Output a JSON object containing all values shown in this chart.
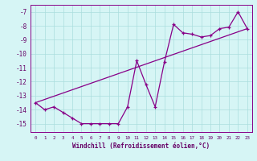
{
  "xlabel": "Windchill (Refroidissement éolien,°C)",
  "bg_color": "#d6f5f5",
  "line_color": "#880088",
  "grid_color": "#aadddd",
  "text_color": "#660066",
  "xlim": [
    -0.5,
    23.5
  ],
  "ylim": [
    -15.6,
    -6.5
  ],
  "yticks": [
    -15,
    -14,
    -13,
    -12,
    -11,
    -10,
    -9,
    -8,
    -7
  ],
  "xticks": [
    0,
    1,
    2,
    3,
    4,
    5,
    6,
    7,
    8,
    9,
    10,
    11,
    12,
    13,
    14,
    15,
    16,
    17,
    18,
    19,
    20,
    21,
    22,
    23
  ],
  "series1_x": [
    0,
    1,
    2,
    3,
    4,
    5,
    6,
    7,
    8,
    9,
    10,
    11,
    12,
    13,
    14,
    15,
    16,
    17,
    18,
    19,
    20,
    21,
    22,
    23
  ],
  "series1_y": [
    -13.5,
    -14.0,
    -13.8,
    -14.2,
    -14.6,
    -15.0,
    -15.0,
    -15.0,
    -15.0,
    -15.0,
    -13.8,
    -10.5,
    -12.2,
    -13.8,
    -10.6,
    -7.9,
    -8.5,
    -8.6,
    -8.8,
    -8.7,
    -8.2,
    -8.1,
    -7.0,
    -8.2
  ],
  "series2_x": [
    0,
    23
  ],
  "series2_y": [
    -13.5,
    -8.2
  ]
}
